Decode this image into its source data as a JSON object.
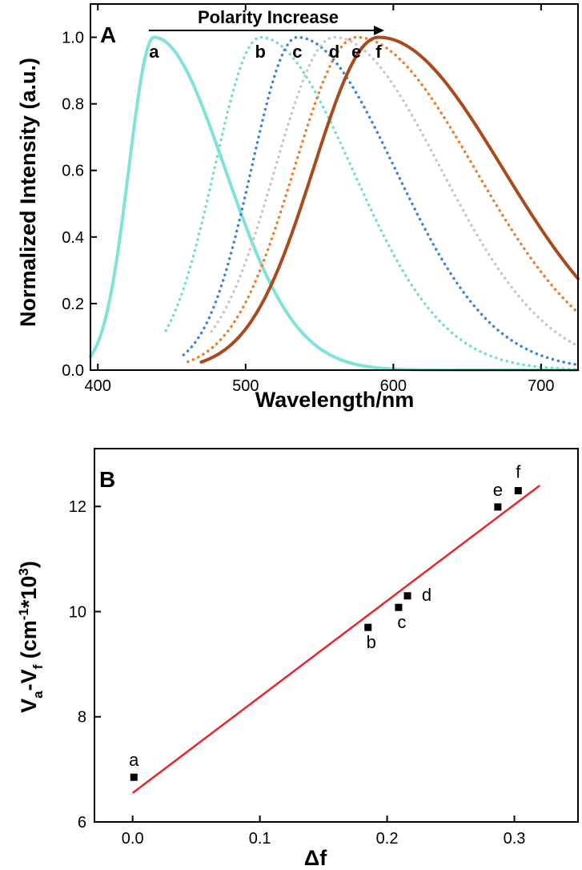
{
  "chart_data": [
    {
      "panel": "A",
      "type": "line",
      "xlabel": "Wavelength/nm",
      "ylabel": "Normalized Intensity (a.u.)",
      "xlim": [
        395,
        725
      ],
      "ylim": [
        0.0,
        1.1
      ],
      "xticks": [
        "400",
        "500",
        "600",
        "700"
      ],
      "yticks": [
        "0.0",
        "0.2",
        "0.4",
        "0.6",
        "0.8",
        "1.0"
      ],
      "annotation": "Polarity Increase",
      "series": [
        {
          "name": "a",
          "color": "#7fe3d8",
          "style": "solid",
          "peak": 438,
          "sigma_left": 17,
          "sigma_right": 48,
          "start": 395,
          "end": 725
        },
        {
          "name": "b",
          "color": "#6fe0c6",
          "style": "dotted",
          "peak": 510,
          "sigma_left": 31,
          "sigma_right": 62,
          "start": 446,
          "end": 725
        },
        {
          "name": "c",
          "color": "#3b82e0",
          "style": "dotted",
          "peak": 535,
          "sigma_left": 31,
          "sigma_right": 66,
          "start": 458,
          "end": 725
        },
        {
          "name": "d",
          "color": "#c8c8c8",
          "style": "dotted",
          "peak": 560,
          "sigma_left": 40,
          "sigma_right": 72,
          "start": 477,
          "end": 725
        },
        {
          "name": "e",
          "color": "#f07a26",
          "style": "dotted",
          "peak": 575,
          "sigma_left": 42,
          "sigma_right": 80,
          "start": 461,
          "end": 725
        },
        {
          "name": "f",
          "color": "#a94a1c",
          "style": "solid",
          "peak": 590,
          "sigma_left": 44,
          "sigma_right": 84,
          "start": 470,
          "end": 725
        }
      ]
    },
    {
      "panel": "B",
      "type": "scatter",
      "xlabel": "Δf",
      "ylabel": "V",
      "ylabel_sub_a": "a",
      "ylabel_dash": "-V",
      "ylabel_sub_f": "f",
      "ylabel_unit": " (cm",
      "ylabel_sup1": "-1",
      "ylabel_mid": "*10",
      "ylabel_sup2": "3",
      "ylabel_end": ")",
      "xlim": [
        -0.03,
        0.35
      ],
      "ylim": [
        6,
        13.1
      ],
      "xticks": [
        "0.0",
        "0.1",
        "0.2",
        "0.3"
      ],
      "yticks": [
        "6",
        "8",
        "10",
        "12"
      ],
      "points": [
        {
          "label": "a",
          "x": 0.001,
          "y": 6.85
        },
        {
          "label": "b",
          "x": 0.185,
          "y": 9.7
        },
        {
          "label": "c",
          "x": 0.209,
          "y": 10.08
        },
        {
          "label": "d",
          "x": 0.216,
          "y": 10.3
        },
        {
          "label": "e",
          "x": 0.287,
          "y": 11.99
        },
        {
          "label": "f",
          "x": 0.303,
          "y": 12.3
        }
      ],
      "fit_line": {
        "x": [
          0.0,
          0.32
        ],
        "y": [
          6.55,
          12.4
        ],
        "color": "#e8262a"
      }
    }
  ]
}
